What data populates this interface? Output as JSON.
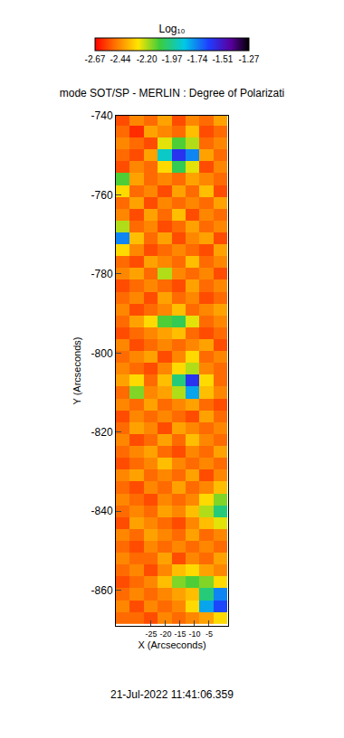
{
  "chart_data": {
    "type": "heatmap",
    "title": "mode SOT/SP - MERLIN : Degree of Polarizati",
    "x_label": "X (Arcseconds)",
    "y_label": "Y (Arcseconds)",
    "annotations": [
      "21-Jul-2022 11:41:06.359"
    ],
    "xlim": [
      -37.2,
      1.6
    ],
    "ylim": [
      -869,
      -740
    ],
    "xticks": [
      -25,
      -20,
      -15,
      -10,
      -5
    ],
    "yticks": [
      -740,
      -760,
      -780,
      -800,
      -820,
      -840,
      -860
    ],
    "colorbar": {
      "title": "Log₁₀",
      "range": [
        -2.67,
        -1.27
      ],
      "ticks": [
        -2.67,
        -2.44,
        {
          "value": -2.2,
          "label": "-2.20"
        },
        -1.97,
        -1.74,
        -1.51,
        -1.27
      ]
    },
    "x": [
      -34.8,
      -30,
      -25.2,
      -20.4,
      -15.6,
      -10.8,
      -6,
      -1.2
    ],
    "y": [
      -741,
      -744,
      -747,
      -750,
      -753,
      -756,
      -759,
      -762,
      -765,
      -768,
      -771,
      -774,
      -777,
      -780,
      -783,
      -786,
      -789,
      -792,
      -795,
      -798,
      -801,
      -804,
      -807,
      -810,
      -813,
      -816,
      -819,
      -822,
      -825,
      -828,
      -831,
      -834,
      -837,
      -840,
      -843,
      -846,
      -849,
      -852,
      -855,
      -858,
      -861,
      -864,
      -867
    ],
    "z": [
      [
        -2.55,
        -2.45,
        -2.5,
        -2.4,
        -2.55,
        -2.45,
        -2.5,
        -2.4
      ],
      [
        -2.5,
        -2.6,
        -2.4,
        -2.45,
        -2.5,
        -2.35,
        -2.55,
        -2.5
      ],
      [
        -2.45,
        -2.5,
        -2.55,
        -2.25,
        -2.1,
        -2.2,
        -2.5,
        -2.45
      ],
      [
        -2.5,
        -2.55,
        -2.4,
        -1.9,
        -1.6,
        -1.75,
        -2.4,
        -2.5
      ],
      [
        -2.55,
        -2.45,
        -2.5,
        -2.3,
        -2.05,
        -2.25,
        -2.55,
        -2.45
      ],
      [
        -2.1,
        -2.4,
        -2.5,
        -2.45,
        -2.5,
        -2.4,
        -2.45,
        -2.5
      ],
      [
        -2.3,
        -2.5,
        -2.45,
        -2.55,
        -2.4,
        -2.5,
        -2.35,
        -2.55
      ],
      [
        -2.5,
        -2.4,
        -2.55,
        -2.45,
        -2.5,
        -2.45,
        -2.5,
        -2.4
      ],
      [
        -2.45,
        -2.55,
        -2.4,
        -2.5,
        -2.35,
        -2.55,
        -2.45,
        -2.5
      ],
      [
        -2.2,
        -2.5,
        -2.45,
        -2.55,
        -2.5,
        -2.4,
        -2.5,
        -2.45
      ],
      [
        -1.75,
        -2.35,
        -2.5,
        -2.4,
        -2.55,
        -2.45,
        -2.4,
        -2.55
      ],
      [
        -2.3,
        -2.45,
        -2.55,
        -2.5,
        -2.45,
        -2.5,
        -2.55,
        -2.4
      ],
      [
        -2.5,
        -2.55,
        -2.4,
        -2.45,
        -2.5,
        -2.35,
        -2.5,
        -2.45
      ],
      [
        -2.45,
        -2.4,
        -2.5,
        -2.2,
        -2.45,
        -2.5,
        -2.45,
        -2.55
      ],
      [
        -2.55,
        -2.5,
        -2.45,
        -2.5,
        -2.55,
        -2.4,
        -2.5,
        -2.45
      ],
      [
        -2.5,
        -2.45,
        -2.55,
        -2.4,
        -2.5,
        -2.45,
        -2.55,
        -2.5
      ],
      [
        -2.45,
        -2.55,
        -2.5,
        -2.45,
        -2.35,
        -2.5,
        -2.45,
        -2.4
      ],
      [
        -2.5,
        -2.4,
        -2.3,
        -2.1,
        -2.05,
        -2.25,
        -2.5,
        -2.45
      ],
      [
        -2.55,
        -2.5,
        -2.45,
        -2.4,
        -2.35,
        -2.5,
        -2.55,
        -2.5
      ],
      [
        -2.45,
        -2.55,
        -2.5,
        -2.45,
        -2.5,
        -2.45,
        -2.4,
        -2.55
      ],
      [
        -2.5,
        -2.45,
        -2.4,
        -2.55,
        -2.45,
        -2.3,
        -2.5,
        -2.45
      ],
      [
        -2.45,
        -2.5,
        -2.55,
        -2.45,
        -2.3,
        -2.2,
        -2.45,
        -2.5
      ],
      [
        -2.4,
        -2.3,
        -2.5,
        -2.35,
        -2.0,
        -1.6,
        -2.3,
        -2.5
      ],
      [
        -2.5,
        -2.15,
        -2.45,
        -2.4,
        -2.2,
        -1.8,
        -2.35,
        -2.45
      ],
      [
        -2.45,
        -2.5,
        -2.4,
        -2.5,
        -2.45,
        -2.4,
        -2.5,
        -2.55
      ],
      [
        -2.55,
        -2.45,
        -2.5,
        -2.45,
        -2.5,
        -2.55,
        -2.4,
        -2.5
      ],
      [
        -2.5,
        -2.4,
        -2.45,
        -2.55,
        -2.4,
        -2.45,
        -2.5,
        -2.45
      ],
      [
        -2.45,
        -2.55,
        -2.5,
        -2.4,
        -2.5,
        -2.35,
        -2.45,
        -2.5
      ],
      [
        -2.5,
        -2.45,
        -2.4,
        -2.5,
        -2.55,
        -2.45,
        -2.5,
        -2.4
      ],
      [
        -2.55,
        -2.5,
        -2.45,
        -2.35,
        -2.45,
        -2.5,
        -2.45,
        -2.5
      ],
      [
        -2.45,
        -2.4,
        -2.5,
        -2.45,
        -2.5,
        -2.4,
        -2.55,
        -2.45
      ],
      [
        -2.5,
        -2.55,
        -2.45,
        -2.5,
        -2.4,
        -2.5,
        -2.45,
        -2.35
      ],
      [
        -2.45,
        -2.5,
        -2.55,
        -2.45,
        -2.5,
        -2.45,
        -2.3,
        -2.15
      ],
      [
        -2.5,
        -2.45,
        -2.5,
        -2.4,
        -2.45,
        -2.35,
        -2.2,
        -2.0
      ],
      [
        -2.55,
        -2.4,
        -2.45,
        -2.5,
        -2.55,
        -2.45,
        -2.35,
        -2.25
      ],
      [
        -2.45,
        -2.5,
        -2.4,
        -2.45,
        -2.5,
        -2.4,
        -2.5,
        -2.45
      ],
      [
        -2.5,
        -2.55,
        -2.45,
        -2.5,
        -2.45,
        -2.5,
        -2.45,
        -2.5
      ],
      [
        -2.45,
        -2.5,
        -2.5,
        -2.4,
        -2.55,
        -2.45,
        -2.5,
        -2.4
      ],
      [
        -2.5,
        -2.45,
        -2.55,
        -2.45,
        -2.35,
        -2.3,
        -2.4,
        -2.45
      ],
      [
        -2.55,
        -2.5,
        -2.45,
        -2.35,
        -2.15,
        -2.1,
        -2.15,
        -2.3
      ],
      [
        -2.5,
        -2.45,
        -2.5,
        -2.45,
        -2.4,
        -2.35,
        -2.0,
        -1.75
      ],
      [
        -2.45,
        -2.55,
        -2.45,
        -2.5,
        -2.45,
        -2.3,
        -1.8,
        -1.65
      ],
      [
        -2.5,
        -2.5,
        -2.55,
        -2.45,
        -2.5,
        -2.45,
        -2.4,
        -2.3
      ]
    ]
  }
}
